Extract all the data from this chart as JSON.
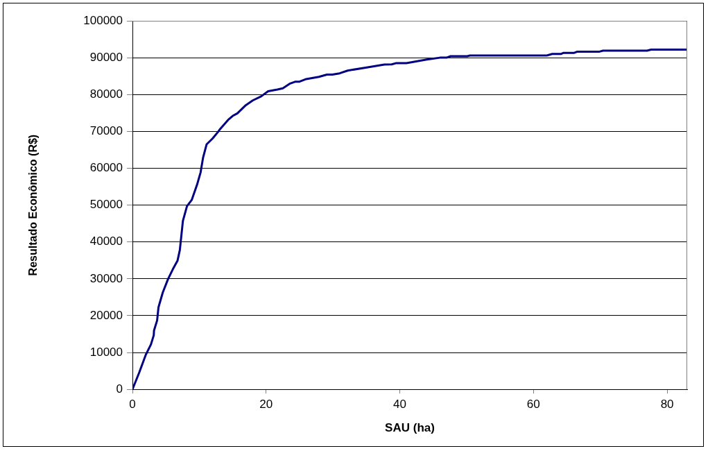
{
  "chart_data": {
    "type": "line",
    "xlabel": "SAU (ha)",
    "ylabel": "Resultado Econômico (R$)",
    "xlim": [
      0,
      83
    ],
    "xticks": [
      0,
      20,
      40,
      60,
      80
    ],
    "ylim": [
      0,
      100000
    ],
    "yticks": [
      0,
      10000,
      20000,
      30000,
      40000,
      50000,
      60000,
      70000,
      80000,
      90000,
      100000
    ],
    "grid": "y",
    "legend": false,
    "marker": "none",
    "line_style": "solid",
    "series": [
      {
        "color": "#000080",
        "x": [
          0,
          1.0,
          2.0,
          2.77,
          3.19,
          3.23,
          3.69,
          3.9,
          4.54,
          5.32,
          6.13,
          6.74,
          7.09,
          7.55,
          8.16,
          8.87,
          9.68,
          10.2,
          10.57,
          11.1,
          12.0,
          12.87,
          13.05,
          14.3,
          15.0,
          15.7,
          16.95,
          18.0,
          19.26,
          20.3,
          21.7,
          22.5,
          23.6,
          24.4,
          25.0,
          26.0,
          27.9,
          29.1,
          29.9,
          31.0,
          32.2,
          34.9,
          37.7,
          38.8,
          39.4,
          41.0,
          43.9,
          46.0,
          47.0,
          47.6,
          50.1,
          50.5,
          62.0,
          62.8,
          64.1,
          64.5,
          66.1,
          66.5,
          69.8,
          70.4,
          77.0,
          77.6,
          83
        ],
        "values": [
          0,
          4500,
          9400,
          12200,
          14700,
          16000,
          18700,
          22300,
          26300,
          29900,
          32900,
          34900,
          37800,
          45700,
          49700,
          51400,
          55600,
          58900,
          62900,
          66500,
          68100,
          70000,
          70500,
          73100,
          74200,
          74900,
          77100,
          78400,
          79500,
          80900,
          81350,
          81700,
          83000,
          83500,
          83500,
          84200,
          84800,
          85400,
          85400,
          85750,
          86500,
          87300,
          88150,
          88200,
          88500,
          88500,
          89450,
          90000,
          90000,
          90400,
          90400,
          90600,
          90600,
          91000,
          91000,
          91300,
          91300,
          91600,
          91600,
          91900,
          91900,
          92200,
          92200
        ]
      }
    ]
  }
}
